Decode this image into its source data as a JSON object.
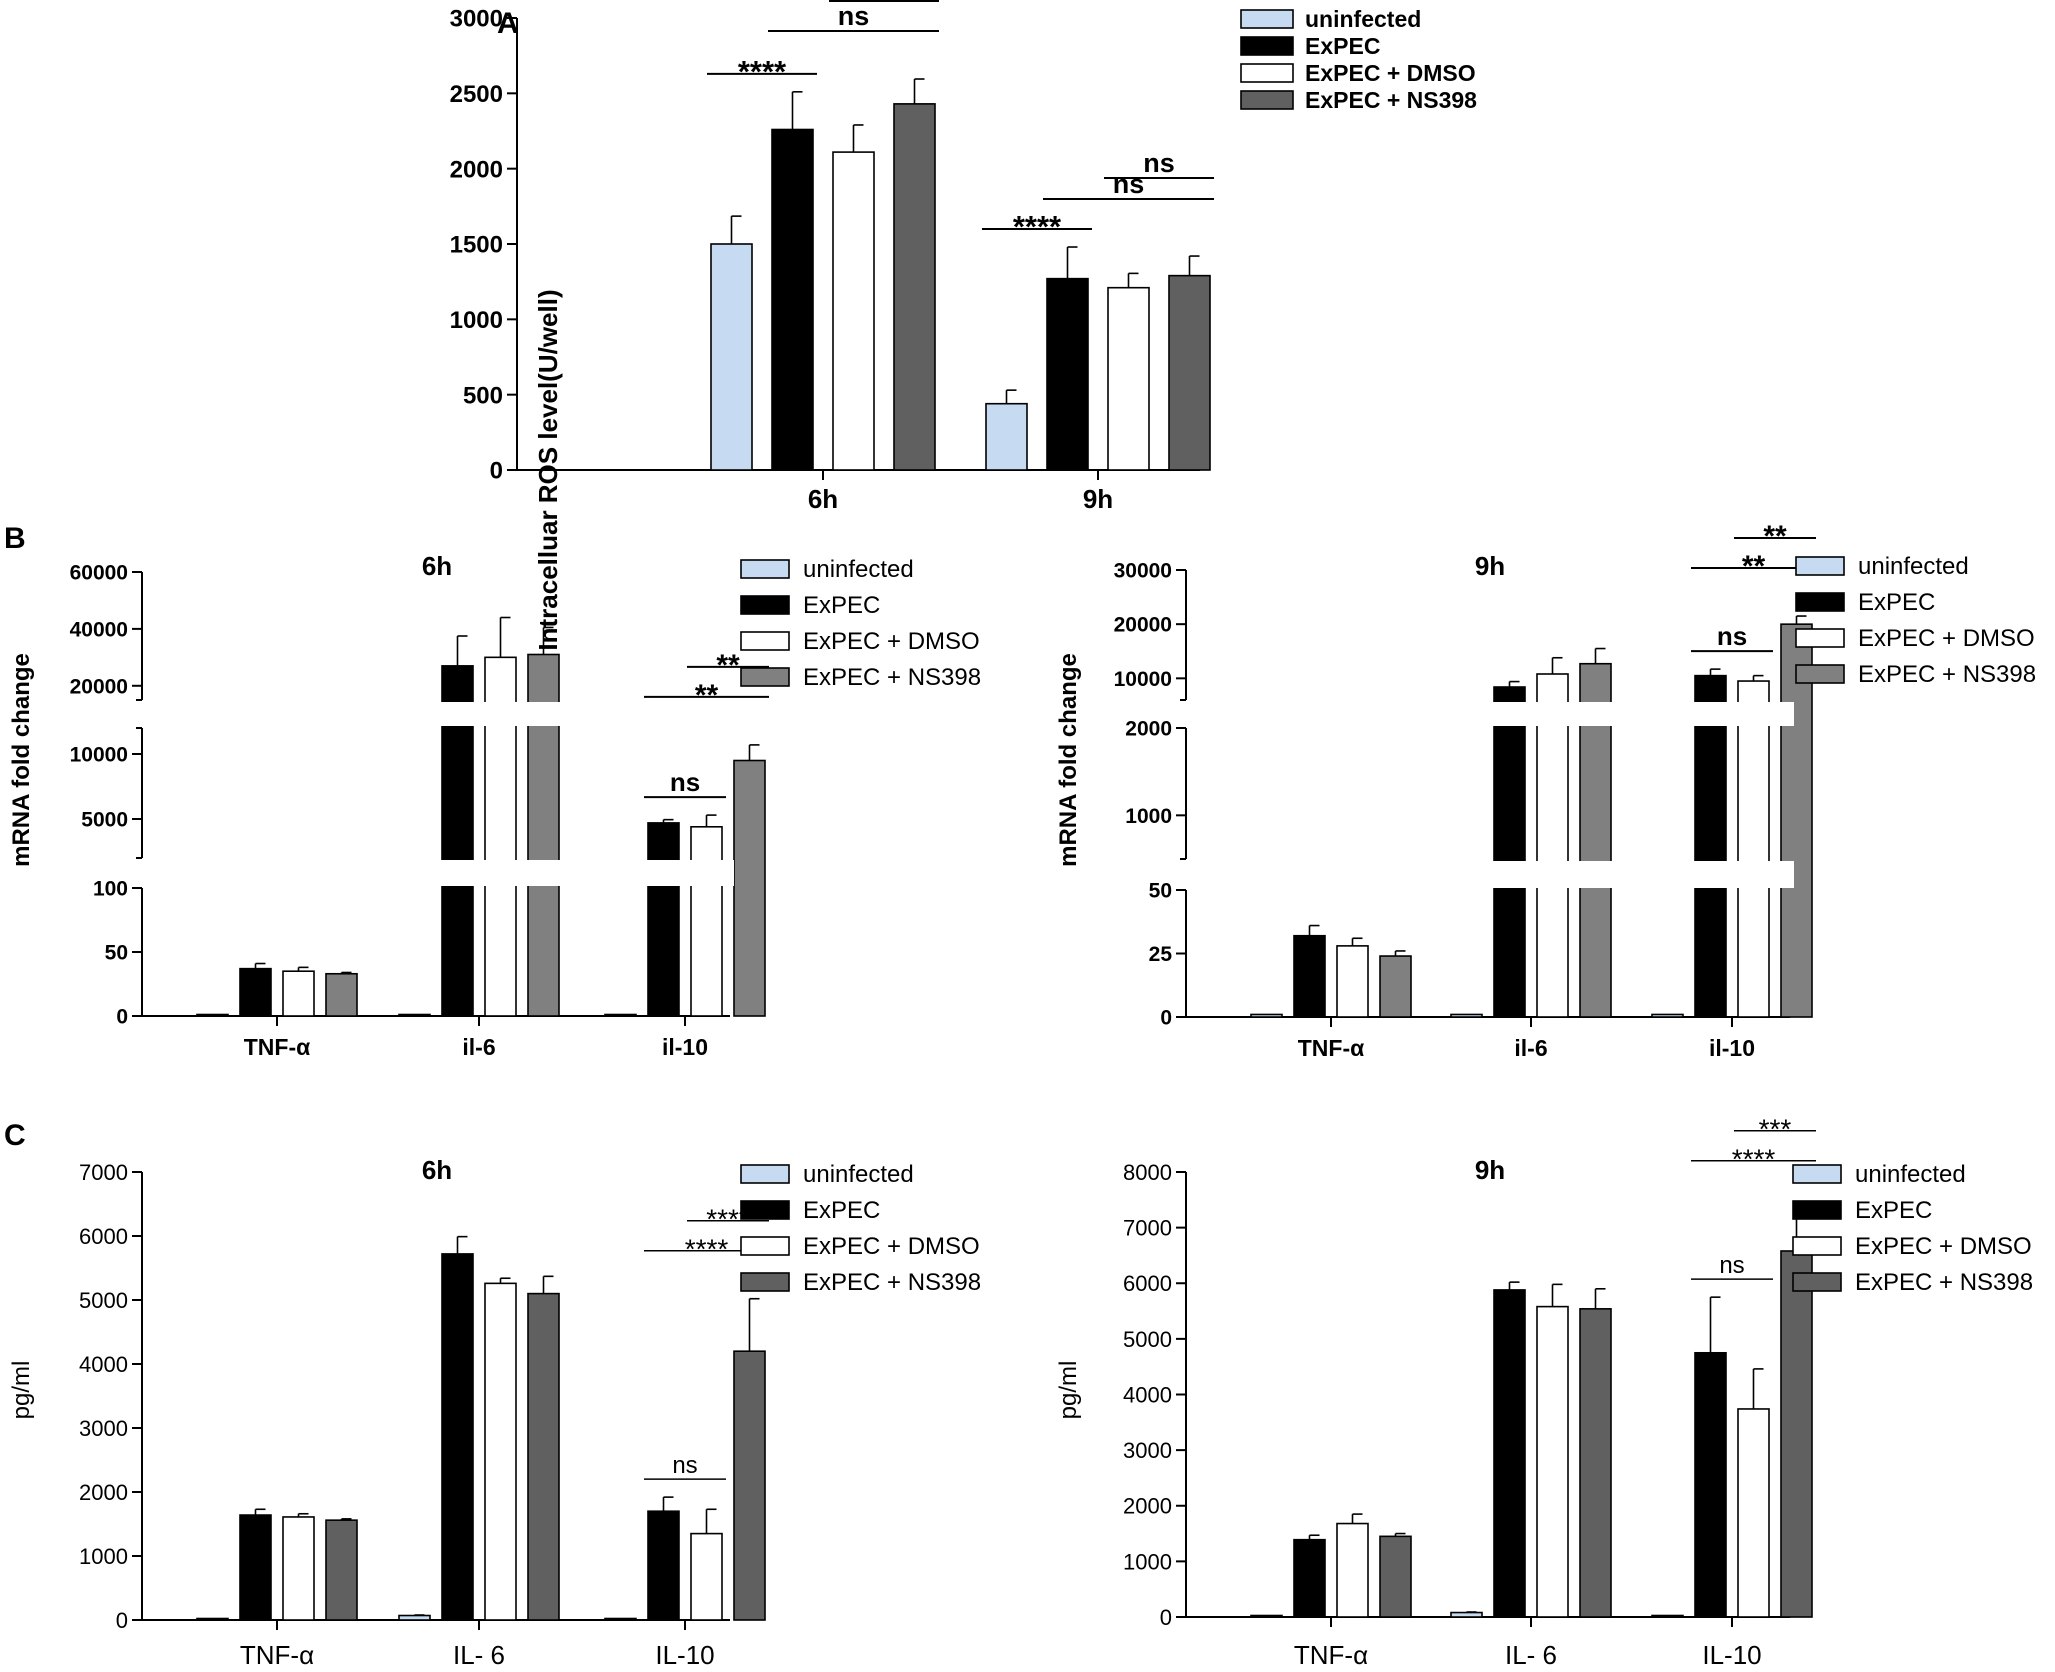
{
  "figure": {
    "panel_labels": [
      "A",
      "B",
      "C"
    ]
  },
  "colors": {
    "uninfected": "#c6dbf2",
    "ExPEC": "#000000",
    "ExPEC + DMSO": "#ffffff",
    "ExPEC + NS398": "#606060",
    "ExPEC + NS398 (B)": "#808080"
  },
  "chart_data": [
    {
      "id": "A",
      "type": "bar",
      "title": "",
      "ylabel": "Intracelluar ROS level(U/well)",
      "xlabel": "",
      "ylim": [
        0,
        3000
      ],
      "yticks": [
        0,
        500,
        1000,
        1500,
        2000,
        2500,
        3000
      ],
      "categories": [
        "6h",
        "9h"
      ],
      "legend_position": "top-right",
      "series": [
        {
          "name": "uninfected",
          "values": [
            1500,
            440
          ],
          "errors": [
            185,
            90
          ]
        },
        {
          "name": "ExPEC",
          "values": [
            2260,
            1270
          ],
          "errors": [
            250,
            210
          ]
        },
        {
          "name": "ExPEC + DMSO",
          "values": [
            2110,
            1210
          ],
          "errors": [
            180,
            95
          ]
        },
        {
          "name": "ExPEC + NS398",
          "values": [
            2430,
            1290
          ],
          "errors": [
            165,
            130
          ]
        }
      ],
      "annotations": [
        {
          "group": "6h",
          "from": 0,
          "to": 1,
          "text": "****"
        },
        {
          "group": "6h",
          "from": 1,
          "to": 3,
          "text": "ns"
        },
        {
          "group": "6h",
          "from": 2,
          "to": 3,
          "text": "ns"
        },
        {
          "group": "9h",
          "from": 0,
          "to": 1,
          "text": "****"
        },
        {
          "group": "9h",
          "from": 1,
          "to": 3,
          "text": "ns"
        },
        {
          "group": "9h",
          "from": 2,
          "to": 3,
          "text": "ns"
        }
      ]
    },
    {
      "id": "B-6h",
      "type": "bar",
      "title": "6h",
      "ylabel": "mRNA fold change",
      "categories": [
        "TNF-α",
        "il-6",
        "il-10"
      ],
      "legend_position": "top-right",
      "y_segments": [
        {
          "range": [
            0,
            100
          ],
          "ticks": [
            0,
            50,
            100
          ]
        },
        {
          "range": [
            2000,
            12000
          ],
          "ticks": [
            5000,
            10000
          ]
        },
        {
          "range": [
            15000,
            60000
          ],
          "ticks": [
            20000,
            40000,
            60000
          ]
        }
      ],
      "series": [
        {
          "name": "uninfected",
          "values": [
            1,
            1,
            1
          ],
          "errors": [
            0,
            0,
            0
          ]
        },
        {
          "name": "ExPEC",
          "values": [
            37,
            27000,
            4700
          ],
          "errors": [
            4,
            10500,
            250
          ]
        },
        {
          "name": "ExPEC + DMSO",
          "values": [
            35,
            30000,
            4400
          ],
          "errors": [
            3,
            14000,
            900
          ]
        },
        {
          "name": "ExPEC + NS398",
          "values": [
            33,
            31000,
            9500
          ],
          "errors": [
            1,
            9500,
            1200
          ]
        }
      ],
      "annotations": [
        {
          "group": "il-10",
          "from": 1,
          "to": 2,
          "text": "ns"
        },
        {
          "group": "il-10",
          "from": 1,
          "to": 3,
          "text": "**"
        },
        {
          "group": "il-10",
          "from": 2,
          "to": 3,
          "text": "**"
        }
      ]
    },
    {
      "id": "B-9h",
      "type": "bar",
      "title": "9h",
      "ylabel": "mRNA fold change",
      "categories": [
        "TNF-α",
        "il-6",
        "il-10"
      ],
      "legend_position": "top-right",
      "y_segments": [
        {
          "range": [
            0,
            50
          ],
          "ticks": [
            0,
            25,
            50
          ]
        },
        {
          "range": [
            500,
            2000
          ],
          "ticks": [
            1000,
            2000
          ]
        },
        {
          "range": [
            6000,
            30000
          ],
          "ticks": [
            10000,
            20000,
            30000
          ]
        }
      ],
      "series": [
        {
          "name": "uninfected",
          "values": [
            1,
            1,
            1
          ],
          "errors": [
            0,
            0,
            0
          ]
        },
        {
          "name": "ExPEC",
          "values": [
            32,
            8400,
            10500
          ],
          "errors": [
            4,
            1000,
            1200
          ]
        },
        {
          "name": "ExPEC + DMSO",
          "values": [
            28,
            10800,
            9500
          ],
          "errors": [
            3,
            3000,
            1000
          ]
        },
        {
          "name": "ExPEC + NS398",
          "values": [
            24,
            12700,
            20000
          ],
          "errors": [
            2,
            2800,
            1500
          ]
        }
      ],
      "annotations": [
        {
          "group": "il-10",
          "from": 1,
          "to": 2,
          "text": "ns"
        },
        {
          "group": "il-10",
          "from": 1,
          "to": 3,
          "text": "**"
        },
        {
          "group": "il-10",
          "from": 2,
          "to": 3,
          "text": "**"
        }
      ]
    },
    {
      "id": "C-6h",
      "type": "bar",
      "title": "6h",
      "ylabel": "pg/ml",
      "ylim": [
        0,
        7000
      ],
      "yticks": [
        0,
        1000,
        2000,
        3000,
        4000,
        5000,
        6000,
        7000
      ],
      "categories": [
        "TNF-α",
        "IL- 6",
        "IL-10"
      ],
      "legend_position": "top-right",
      "series": [
        {
          "name": "uninfected",
          "values": [
            0,
            70,
            0
          ],
          "errors": [
            0,
            8,
            0
          ]
        },
        {
          "name": "ExPEC",
          "values": [
            1640,
            5720,
            1700
          ],
          "errors": [
            90,
            270,
            220
          ]
        },
        {
          "name": "ExPEC + DMSO",
          "values": [
            1610,
            5260,
            1350
          ],
          "errors": [
            50,
            80,
            380
          ]
        },
        {
          "name": "ExPEC + NS398",
          "values": [
            1560,
            5100,
            4200
          ],
          "errors": [
            20,
            270,
            820
          ]
        }
      ],
      "annotations": [
        {
          "group": "IL-10",
          "from": 1,
          "to": 2,
          "text": "ns"
        },
        {
          "group": "IL-10",
          "from": 1,
          "to": 3,
          "text": "****"
        },
        {
          "group": "IL-10",
          "from": 2,
          "to": 3,
          "text": "****"
        }
      ]
    },
    {
      "id": "C-9h",
      "type": "bar",
      "title": "9h",
      "ylabel": "pg/ml",
      "ylim": [
        0,
        8000
      ],
      "yticks": [
        0,
        1000,
        2000,
        3000,
        4000,
        5000,
        6000,
        7000,
        8000
      ],
      "categories": [
        "TNF-α",
        "IL- 6",
        "IL-10"
      ],
      "legend_position": "top-right",
      "series": [
        {
          "name": "uninfected",
          "values": [
            20,
            80,
            0
          ],
          "errors": [
            0,
            10,
            0
          ]
        },
        {
          "name": "ExPEC",
          "values": [
            1390,
            5880,
            4750
          ],
          "errors": [
            80,
            140,
            1000
          ]
        },
        {
          "name": "ExPEC + DMSO",
          "values": [
            1680,
            5580,
            3740
          ],
          "errors": [
            170,
            400,
            720
          ]
        },
        {
          "name": "ExPEC + NS398",
          "values": [
            1450,
            5540,
            6580
          ],
          "errors": [
            50,
            360,
            760
          ]
        }
      ],
      "annotations": [
        {
          "group": "IL-10",
          "from": 1,
          "to": 2,
          "text": "ns"
        },
        {
          "group": "IL-10",
          "from": 1,
          "to": 3,
          "text": "****"
        },
        {
          "group": "IL-10",
          "from": 2,
          "to": 3,
          "text": "***"
        }
      ]
    }
  ]
}
